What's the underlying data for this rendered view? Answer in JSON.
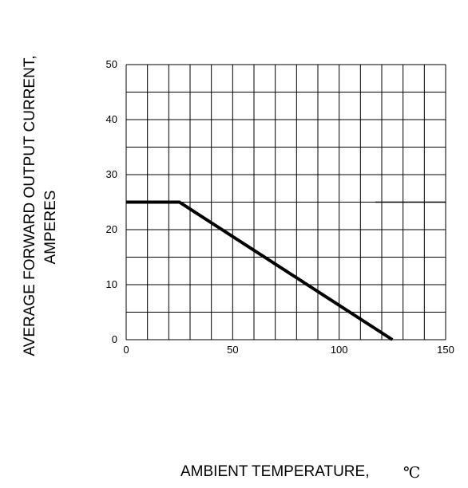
{
  "chart_data": {
    "type": "line",
    "title": "",
    "xlabel": "AMBIENT TEMPERATURE,",
    "xlabel_unit": "℃",
    "ylabel_lines": [
      "AVERAGE FORWARD OUTPUT CURRENT,",
      "AMPERES"
    ],
    "xlim": [
      0,
      150
    ],
    "ylim": [
      0,
      50
    ],
    "x_ticks": [
      0,
      50,
      100,
      150
    ],
    "y_ticks": [
      0,
      10,
      20,
      30,
      40,
      50
    ],
    "x_grid_step": 10,
    "y_grid_step": 5,
    "grid": true,
    "series": [
      {
        "x": [
          0,
          25,
          125
        ],
        "y": [
          25,
          25,
          0
        ],
        "color": "#000000"
      },
      {
        "x": [
          117,
          150
        ],
        "y": [
          25,
          25
        ],
        "color": "#000000"
      }
    ]
  }
}
